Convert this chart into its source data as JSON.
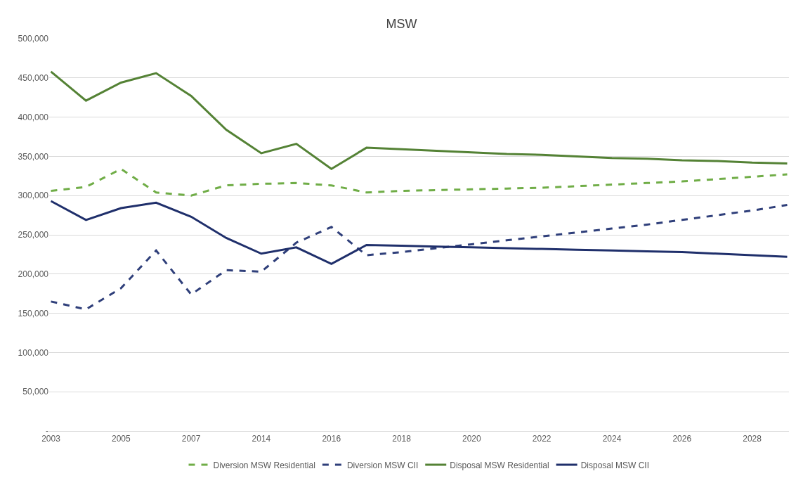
{
  "chart_data": {
    "type": "line",
    "title": "MSW",
    "categories": [
      "2003",
      null,
      "2005",
      null,
      "2007",
      null,
      "2014",
      null,
      "2016",
      null,
      "2018",
      null,
      "2020",
      null,
      "2022",
      null,
      "2024",
      null,
      "2026",
      null,
      "2028",
      null
    ],
    "series": [
      {
        "name": "Diversion MSW Residential",
        "color": "#70ad47",
        "line_style": "dashed",
        "values": [
          306000,
          311000,
          334000,
          304000,
          300000,
          313000,
          315000,
          316000,
          313000,
          304000,
          306000,
          307000,
          308000,
          309000,
          310000,
          312000,
          314000,
          316000,
          318000,
          321000,
          324000,
          327000
        ]
      },
      {
        "name": "Diversion MSW CII",
        "color": "#2f3f7a",
        "line_style": "dashed",
        "values": [
          165000,
          155000,
          182000,
          230000,
          174000,
          205000,
          203000,
          240000,
          260000,
          224000,
          228000,
          233000,
          238000,
          243000,
          248000,
          253000,
          258000,
          263000,
          269000,
          275000,
          281000,
          288000
        ]
      },
      {
        "name": "Disposal MSW Residential",
        "color": "#548235",
        "line_style": "solid",
        "values": [
          458000,
          421000,
          444000,
          456000,
          427000,
          384000,
          354000,
          366000,
          334000,
          361000,
          359000,
          357000,
          355000,
          353000,
          352000,
          350000,
          348000,
          347000,
          345000,
          344000,
          342000,
          341000
        ]
      },
      {
        "name": "Disposal MSW CII",
        "color": "#1f2f6b",
        "line_style": "solid",
        "values": [
          293000,
          269000,
          284000,
          291000,
          273000,
          246000,
          226000,
          234000,
          213000,
          237000,
          236000,
          235000,
          234000,
          233000,
          232000,
          231000,
          230000,
          229000,
          228000,
          226000,
          224000,
          222000
        ]
      }
    ],
    "ylim": [
      0,
      500000
    ],
    "yticks": [
      {
        "value": 0,
        "label": "-"
      },
      {
        "value": 50000,
        "label": "50,000"
      },
      {
        "value": 100000,
        "label": "100,000"
      },
      {
        "value": 150000,
        "label": "150,000"
      },
      {
        "value": 200000,
        "label": "200,000"
      },
      {
        "value": 250000,
        "label": "250,000"
      },
      {
        "value": 300000,
        "label": "300,000"
      },
      {
        "value": 350000,
        "label": "350,000"
      },
      {
        "value": 400000,
        "label": "400,000"
      },
      {
        "value": 450000,
        "label": "450,000"
      },
      {
        "value": 500000,
        "label": "500,000"
      }
    ],
    "grid": "y",
    "legend": "bottom",
    "marker": "none"
  }
}
